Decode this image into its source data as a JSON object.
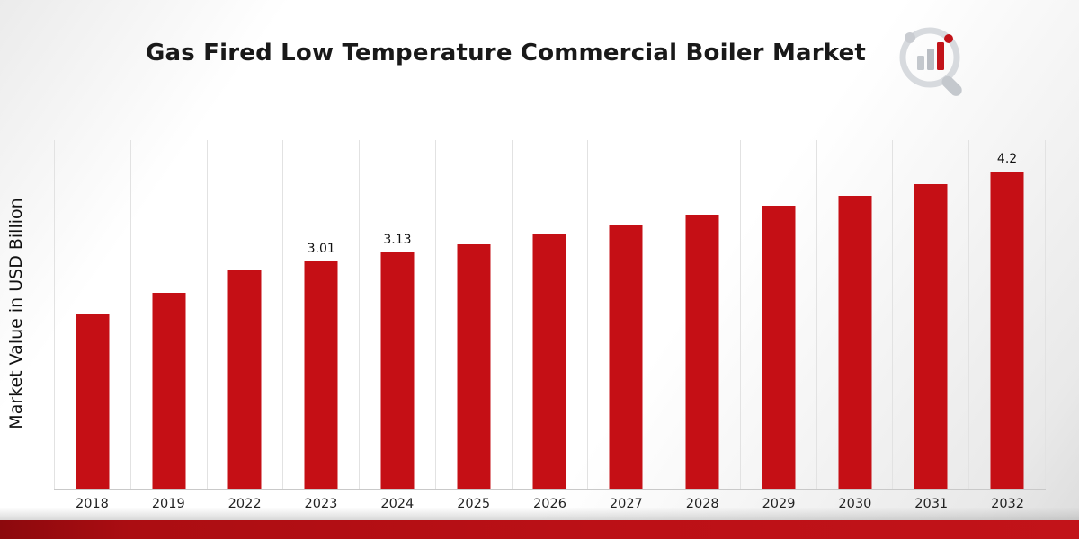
{
  "title": "Gas Fired Low Temperature Commercial Boiler Market",
  "ylabel": "Market Value in USD Billion",
  "chart_data": {
    "type": "bar",
    "title": "Gas Fired Low Temperature Commercial Boiler Market",
    "xlabel": "",
    "ylabel": "Market Value in USD Billion",
    "categories": [
      "2018",
      "2019",
      "2022",
      "2023",
      "2024",
      "2025",
      "2026",
      "2027",
      "2028",
      "2029",
      "2030",
      "2031",
      "2032"
    ],
    "values": [
      2.31,
      2.6,
      2.9,
      3.01,
      3.13,
      3.24,
      3.37,
      3.49,
      3.63,
      3.75,
      3.88,
      4.04,
      4.2
    ],
    "labels": [
      "",
      "",
      "",
      "3.01",
      "3.13",
      "",
      "",
      "",
      "",
      "",
      "",
      "",
      "4.2"
    ],
    "bar_color": "#c50f15",
    "ylim": [
      0,
      4.62
    ],
    "grid": "vertical-only",
    "legend": "none"
  },
  "logo": {
    "name": "market-research-logo"
  }
}
